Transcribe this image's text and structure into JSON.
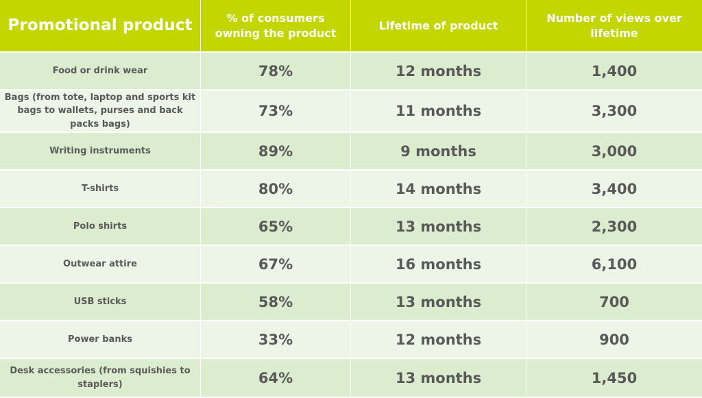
{
  "chart_data": {
    "type": "table",
    "columns": [
      "Promotional product",
      "% of consumers owning the product",
      "Lifetime of product",
      "Number of views over lifetime"
    ],
    "rows": [
      {
        "product": "Food or drink wear",
        "ownership": "78%",
        "lifetime": "12 months",
        "views": "1,400"
      },
      {
        "product": "Bags (from tote, laptop and sports kit bags to wallets, purses and back packs bags)",
        "ownership": "73%",
        "lifetime": "11 months",
        "views": "3,300"
      },
      {
        "product": "Writing instruments",
        "ownership": "89%",
        "lifetime": "9 months",
        "views": "3,000"
      },
      {
        "product": "T-shirts",
        "ownership": "80%",
        "lifetime": "14 months",
        "views": "3,400"
      },
      {
        "product": "Polo shirts",
        "ownership": "65%",
        "lifetime": "13 months",
        "views": "2,300"
      },
      {
        "product": "Outwear attire",
        "ownership": "67%",
        "lifetime": "16 months",
        "views": "6,100"
      },
      {
        "product": "USB sticks",
        "ownership": "58%",
        "lifetime": "13 months",
        "views": "700"
      },
      {
        "product": "Power banks",
        "ownership": "33%",
        "lifetime": "12 months",
        "views": "900"
      },
      {
        "product": "Desk accessories (from squishies to staplers)",
        "ownership": "64%",
        "lifetime": "13 months",
        "views": "1,450"
      }
    ]
  },
  "colors": {
    "header_bg": "#c3d600",
    "header_text": "#ffffff",
    "row_dark": "#dceccf",
    "row_light": "#edf5e8",
    "body_text": "#595959"
  }
}
